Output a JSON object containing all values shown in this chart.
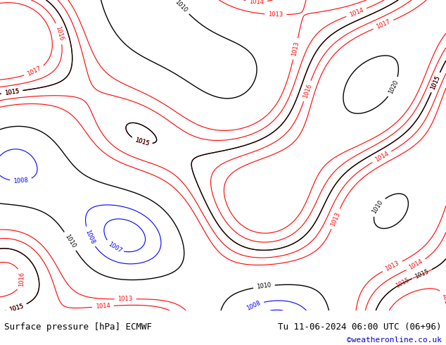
{
  "title_left": "Surface pressure [hPa] ECMWF",
  "title_right": "Tu 11-06-2024 06:00 UTC (06+96)",
  "copyright": "©weatheronline.co.uk",
  "bg_color": "#b2d97e",
  "fig_width": 6.34,
  "fig_height": 4.9,
  "dpi": 100,
  "bottom_bar_color": "#c8d8a0",
  "bottom_bar_height": 0.1,
  "title_color": "#000000",
  "title_right_color": "#000000",
  "copyright_color": "#0000cc"
}
